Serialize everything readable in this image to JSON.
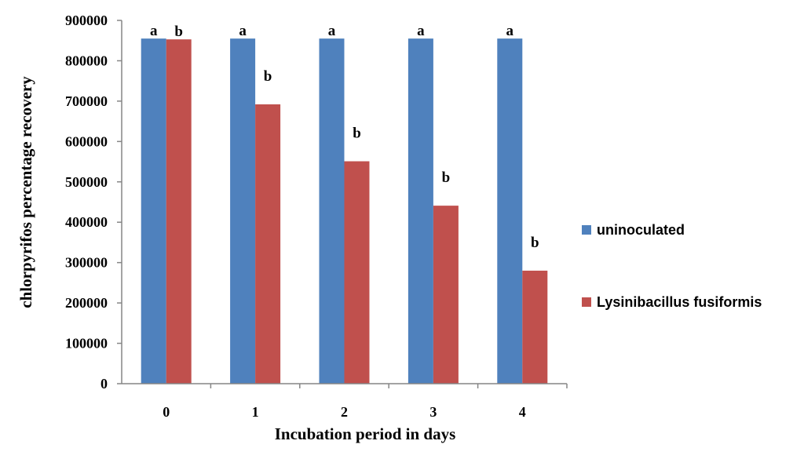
{
  "chart_data": {
    "type": "bar",
    "categories": [
      "0",
      "1",
      "2",
      "3",
      "4"
    ],
    "series": [
      {
        "name": "uninoculated",
        "color": "#4f81bd",
        "values": [
          855000,
          855000,
          855000,
          855000,
          855000
        ],
        "labels": [
          "a",
          "a",
          "a",
          "a",
          "a"
        ]
      },
      {
        "name": "Lysinibacillus fusiformis",
        "color": "#c0504d",
        "values": [
          853000,
          692000,
          551000,
          441000,
          280000
        ],
        "labels": [
          "b",
          "b",
          "b",
          "b",
          "b"
        ]
      }
    ],
    "title": "",
    "xlabel": "Incubation period in days",
    "ylabel": "chlorpyrifos percentage recovery",
    "ylim": [
      0,
      900000
    ],
    "yticks": [
      0,
      100000,
      200000,
      300000,
      400000,
      500000,
      600000,
      700000,
      800000,
      900000
    ],
    "grid": false,
    "legend_position": "right"
  }
}
